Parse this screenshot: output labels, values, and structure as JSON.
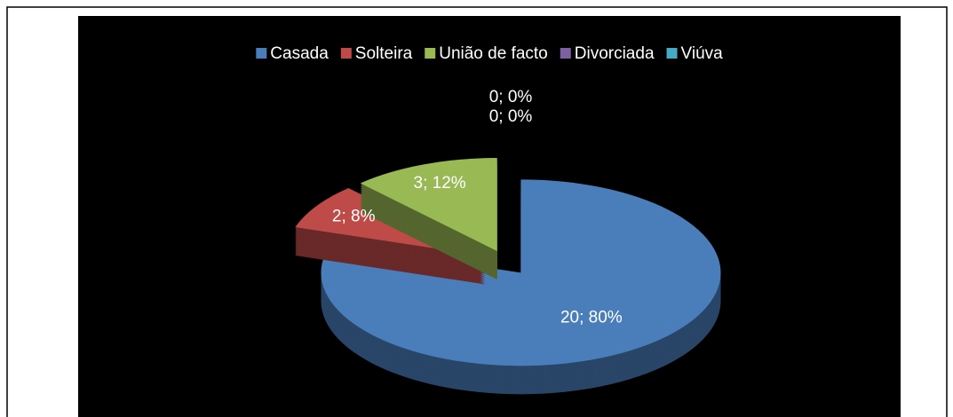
{
  "chart_data": {
    "type": "pie",
    "categories": [
      "Casada",
      "Solteira",
      "União de facto",
      "Divorciada",
      "Viúva"
    ],
    "values": [
      20,
      2,
      3,
      0,
      0
    ],
    "value_labels": [
      "20; 80%",
      "2; 8%",
      "3; 12%",
      "0; 0%",
      "0; 0%"
    ],
    "colors": [
      "#4a7ebb",
      "#be4b48",
      "#98b954",
      "#7d60a0",
      "#46aac5"
    ],
    "legend": "top"
  }
}
